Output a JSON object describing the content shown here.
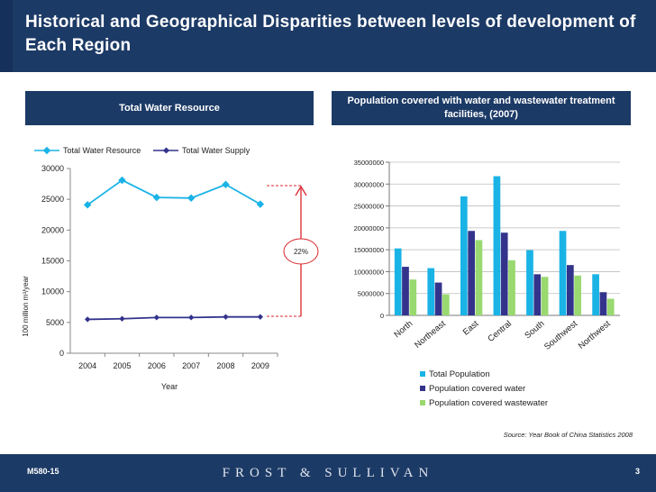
{
  "title": "Historical and Geographical Disparities between levels of development of Each Region",
  "left_section": {
    "title": "Total Water Resource"
  },
  "right_section": {
    "title": "Population covered with water and wastewater treatment facilities, (2007)"
  },
  "annotation": {
    "label": "22%"
  },
  "source": "Source: Year Book of China Statistics 2008",
  "footer": {
    "code": "M580-15",
    "logo": "FROST & SULLIVAN",
    "page": "3"
  },
  "colors": {
    "header": "#1c3a66",
    "cyan": "#1ab3e6",
    "navy": "#33338c",
    "green": "#99d970",
    "annotation": "#d9262c"
  },
  "chart_data": [
    {
      "type": "line",
      "x": [
        "2004",
        "2005",
        "2006",
        "2007",
        "2008",
        "2009"
      ],
      "series": [
        {
          "name": "Total Water Resource",
          "values": [
            24100,
            28100,
            25300,
            25200,
            27400,
            24200
          ]
        },
        {
          "name": "Total Water Supply",
          "values": [
            5500,
            5600,
            5800,
            5800,
            5900,
            5900
          ]
        }
      ],
      "xlabel": "Year",
      "ylabel": "100 million m³/year",
      "ylim": [
        0,
        30000
      ],
      "yticks": [
        0,
        5000,
        10000,
        15000,
        20000,
        25000,
        30000
      ],
      "legend": "top",
      "grid": false
    },
    {
      "type": "bar",
      "categories": [
        "North",
        "Northeast",
        "East",
        "Central",
        "South",
        "Southwest",
        "Northwest"
      ],
      "series": [
        {
          "name": "Total Population",
          "values": [
            15300000,
            10800000,
            27200000,
            31800000,
            14900000,
            19300000,
            9400000
          ]
        },
        {
          "name": "Population covered water",
          "values": [
            11100000,
            7500000,
            19300000,
            18900000,
            9400000,
            11500000,
            5300000
          ]
        },
        {
          "name": "Population covered wastewater",
          "values": [
            8200000,
            4800000,
            17200000,
            12600000,
            8800000,
            9100000,
            3800000
          ]
        }
      ],
      "ylim": [
        0,
        35000000
      ],
      "yticks": [
        "0",
        "5000000",
        "10000000",
        "15000000",
        "20000000",
        "25000000",
        "30000000",
        "35000000"
      ],
      "legend": "bottom",
      "grid": true
    }
  ]
}
